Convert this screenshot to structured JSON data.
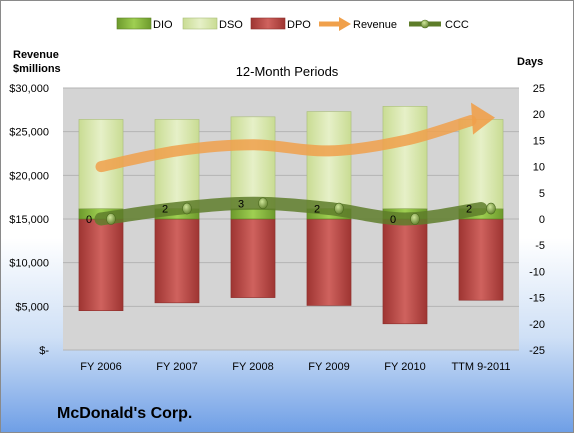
{
  "company": "McDonald's Corp.",
  "chart_data": {
    "type": "bar",
    "title": "12-Month Periods",
    "left_axis_title": [
      "Revenue",
      "$millions"
    ],
    "right_axis_title": "Days",
    "categories": [
      "FY 2006",
      "FY 2007",
      "FY 2008",
      "FY 2009",
      "FY 2010",
      "TTM 9-2011"
    ],
    "left_axis": {
      "min": 0,
      "max": 30000,
      "step": 5000,
      "tick_labels": [
        "$-",
        "$5,000",
        "$10,000",
        "$15,000",
        "$20,000",
        "$25,000",
        "$30,000"
      ]
    },
    "right_axis": {
      "min": -25,
      "max": 25,
      "step": 5,
      "tick_labels": [
        "-25",
        "-20",
        "-15",
        "-10",
        "-5",
        "0",
        "5",
        "10",
        "15",
        "20",
        "25"
      ]
    },
    "legend": {
      "placement": "top",
      "entries": [
        "DIO",
        "DSO",
        "DPO",
        "Revenue",
        "CCC"
      ]
    },
    "series": [
      {
        "name": "DIO",
        "axis": "days",
        "values": [
          2,
          2,
          2,
          2,
          2,
          2
        ]
      },
      {
        "name": "DSO",
        "axis": "days",
        "values": [
          17,
          17,
          17.5,
          18.5,
          19.5,
          17
        ]
      },
      {
        "name": "DPO",
        "axis": "days",
        "values": [
          -17.5,
          -16,
          -15,
          -16.5,
          -20,
          -15.5
        ]
      },
      {
        "name": "Revenue",
        "axis": "revenue",
        "values": [
          21000,
          22800,
          23500,
          22800,
          24000,
          26500
        ]
      },
      {
        "name": "CCC",
        "axis": "days",
        "values": [
          0,
          2,
          3,
          2,
          0,
          2
        ],
        "data_labels": [
          "0",
          "2",
          "3",
          "2",
          "0",
          "2"
        ]
      }
    ],
    "colors": {
      "DIO": "#8cbf3f",
      "DSO": "#d7e6ae",
      "DPO": "#c0504d",
      "Revenue": "#f0a04b",
      "CCC": "#5e7d2a",
      "plot_background": "#d4d4d4",
      "gridline": "#b4b4b4"
    },
    "grid": true
  }
}
